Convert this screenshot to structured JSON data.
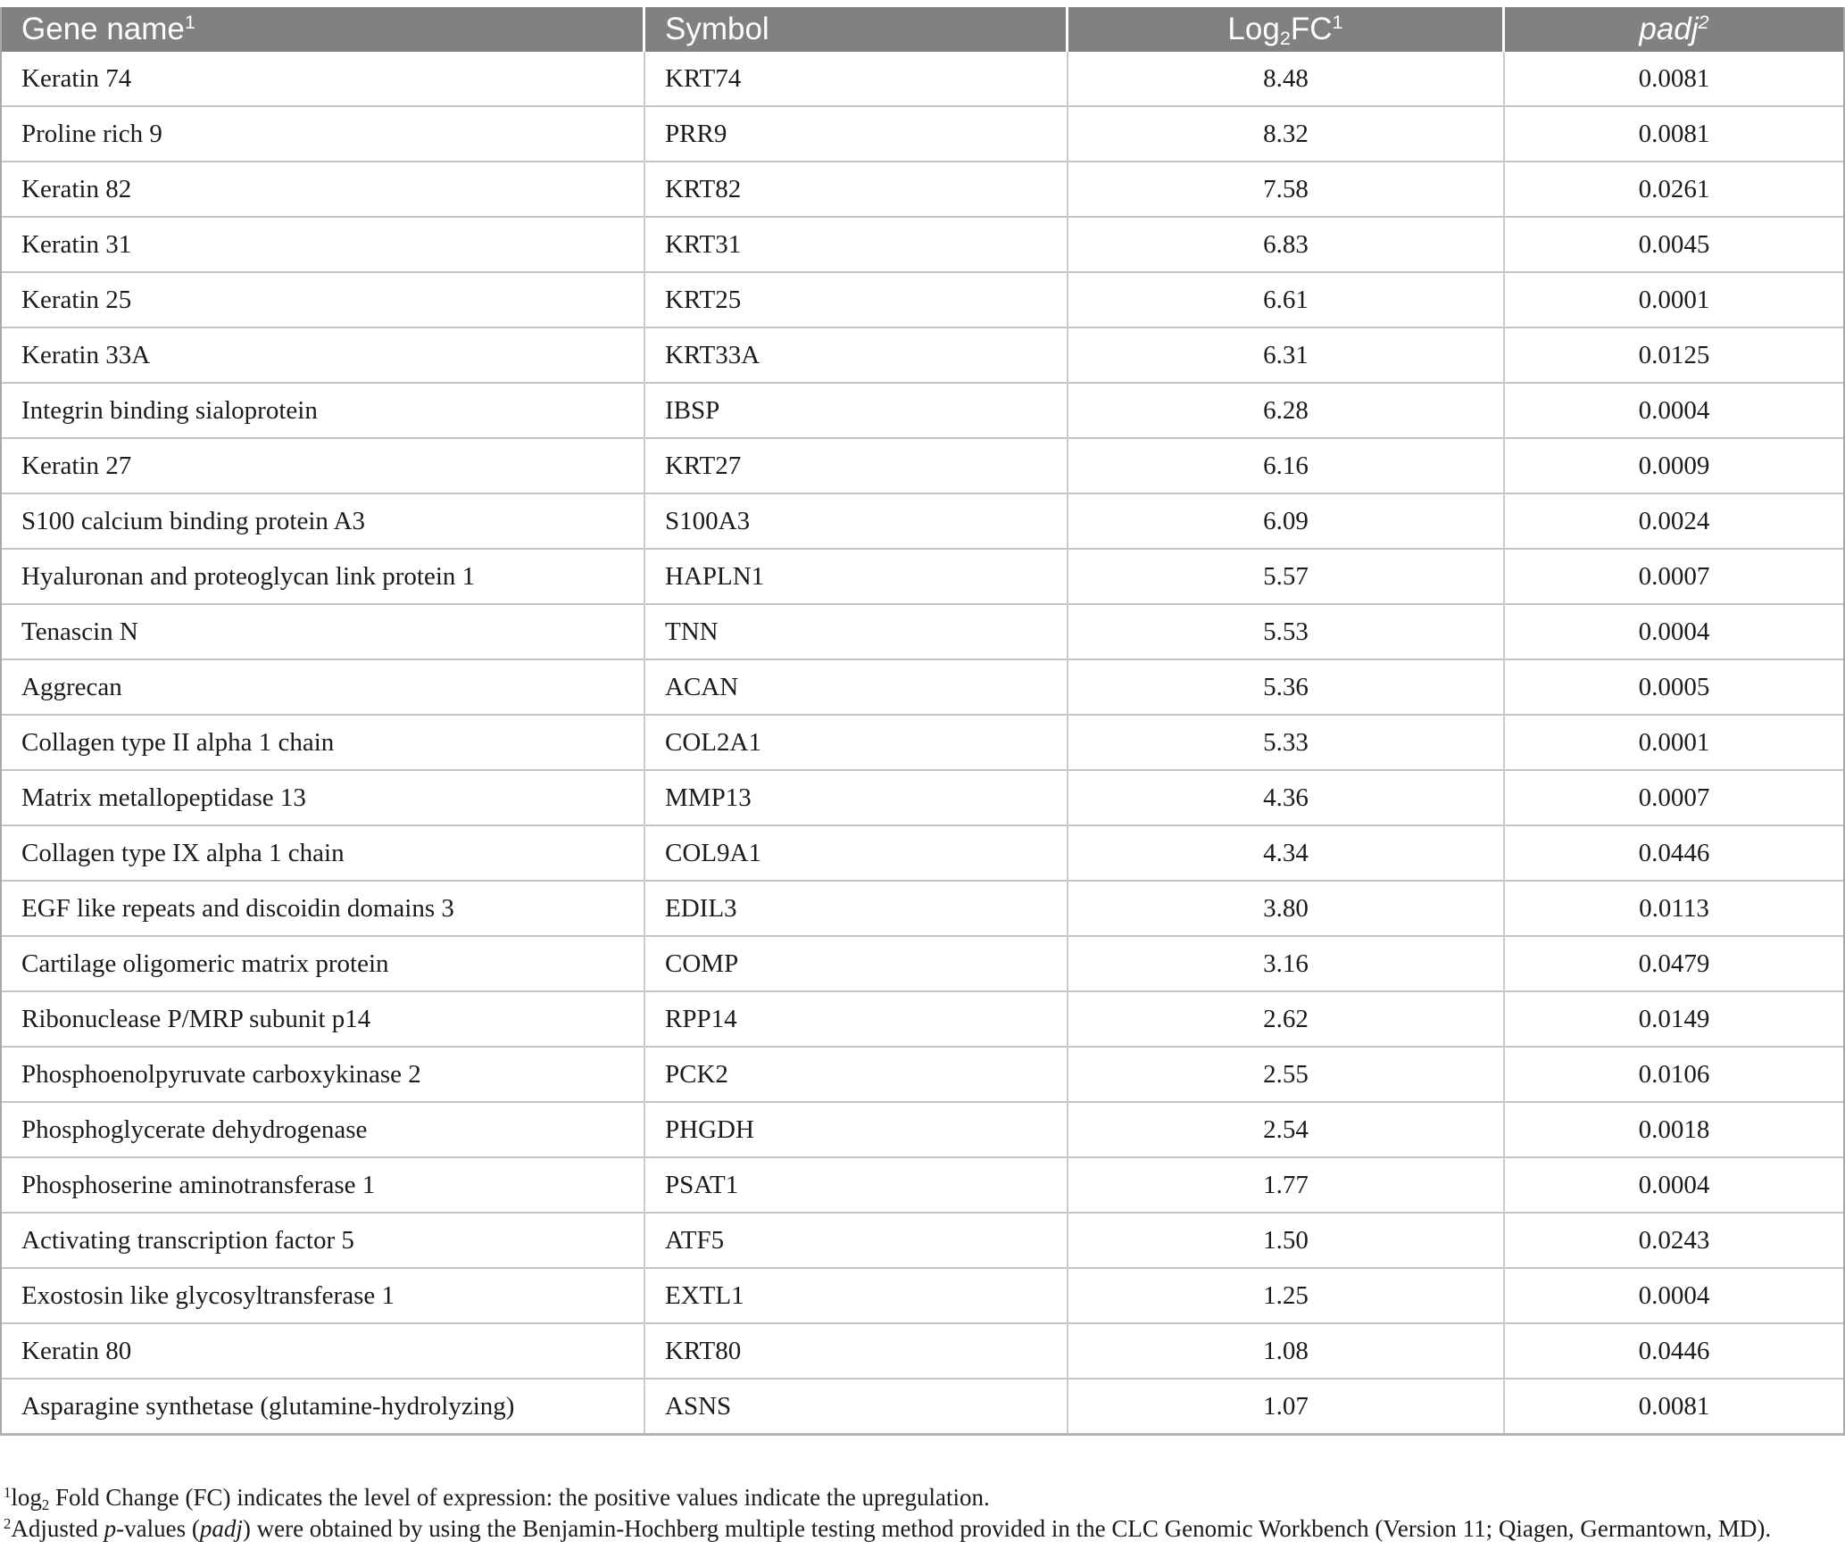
{
  "page": {
    "colors": {
      "header_bg": "#818181",
      "header_text": "#ffffff",
      "body_text": "#1b1b1b",
      "grid_inner": "#c9c9c9",
      "grid_outer": "#a8a8a8"
    }
  },
  "table": {
    "headers": [
      {
        "key": "gene",
        "segments": [
          {
            "t": "Gene name"
          },
          {
            "sup": "1"
          }
        ]
      },
      {
        "key": "symbol",
        "segments": [
          {
            "t": "Symbol"
          }
        ]
      },
      {
        "key": "log2fc",
        "segments": [
          {
            "t": "Log"
          },
          {
            "sub": "2"
          },
          {
            "t": "FC"
          },
          {
            "sup": "1"
          }
        ]
      },
      {
        "key": "padj",
        "segments": [
          {
            "t": "padj"
          },
          {
            "sup": "2"
          }
        ]
      }
    ],
    "rows": [
      {
        "gene": "Keratin 74",
        "symbol": "KRT74",
        "log2fc": "8.48",
        "padj": "0.0081"
      },
      {
        "gene": "Proline rich 9",
        "symbol": "PRR9",
        "log2fc": "8.32",
        "padj": "0.0081"
      },
      {
        "gene": "Keratin 82",
        "symbol": "KRT82",
        "log2fc": "7.58",
        "padj": "0.0261"
      },
      {
        "gene": "Keratin 31",
        "symbol": "KRT31",
        "log2fc": "6.83",
        "padj": "0.0045"
      },
      {
        "gene": "Keratin 25",
        "symbol": "KRT25",
        "log2fc": "6.61",
        "padj": "0.0001"
      },
      {
        "gene": "Keratin 33A",
        "symbol": "KRT33A",
        "log2fc": "6.31",
        "padj": "0.0125"
      },
      {
        "gene": "Integrin binding sialoprotein",
        "symbol": "IBSP",
        "log2fc": "6.28",
        "padj": "0.0004"
      },
      {
        "gene": "Keratin 27",
        "symbol": "KRT27",
        "log2fc": "6.16",
        "padj": "0.0009"
      },
      {
        "gene": "S100 calcium binding protein A3",
        "symbol": "S100A3",
        "log2fc": "6.09",
        "padj": "0.0024"
      },
      {
        "gene": "Hyaluronan and proteoglycan link protein 1",
        "symbol": "HAPLN1",
        "log2fc": "5.57",
        "padj": "0.0007"
      },
      {
        "gene": "Tenascin N",
        "symbol": "TNN",
        "log2fc": "5.53",
        "padj": "0.0004"
      },
      {
        "gene": "Aggrecan",
        "symbol": "ACAN",
        "log2fc": "5.36",
        "padj": "0.0005"
      },
      {
        "gene": "Collagen type II alpha 1 chain",
        "symbol": "COL2A1",
        "log2fc": "5.33",
        "padj": "0.0001"
      },
      {
        "gene": "Matrix metallopeptidase 13",
        "symbol": "MMP13",
        "log2fc": "4.36",
        "padj": "0.0007"
      },
      {
        "gene": "Collagen type IX alpha 1 chain",
        "symbol": "COL9A1",
        "log2fc": "4.34",
        "padj": "0.0446"
      },
      {
        "gene": "EGF like repeats and discoidin domains 3",
        "symbol": "EDIL3",
        "log2fc": "3.80",
        "padj": "0.0113"
      },
      {
        "gene": "Cartilage oligomeric matrix protein",
        "symbol": "COMP",
        "log2fc": "3.16",
        "padj": "0.0479"
      },
      {
        "gene": "Ribonuclease P/MRP subunit p14",
        "symbol": "RPP14",
        "log2fc": "2.62",
        "padj": "0.0149"
      },
      {
        "gene": "Phosphoenolpyruvate carboxykinase 2",
        "symbol": "PCK2",
        "log2fc": "2.55",
        "padj": "0.0106"
      },
      {
        "gene": "Phosphoglycerate dehydrogenase",
        "symbol": "PHGDH",
        "log2fc": "2.54",
        "padj": "0.0018"
      },
      {
        "gene": "Phosphoserine aminotransferase 1",
        "symbol": "PSAT1",
        "log2fc": "1.77",
        "padj": "0.0004"
      },
      {
        "gene": "Activating transcription factor 5",
        "symbol": "ATF5",
        "log2fc": "1.50",
        "padj": "0.0243"
      },
      {
        "gene": "Exostosin like glycosyltransferase 1",
        "symbol": "EXTL1",
        "log2fc": "1.25",
        "padj": "0.0004"
      },
      {
        "gene": "Keratin 80",
        "symbol": "KRT80",
        "log2fc": "1.08",
        "padj": "0.0446"
      },
      {
        "gene": "Asparagine synthetase (glutamine-hydrolyzing)",
        "symbol": "ASNS",
        "log2fc": "1.07",
        "padj": "0.0081"
      }
    ]
  },
  "footnotes": [
    {
      "segments": [
        {
          "sup": "1"
        },
        {
          "t": "log"
        },
        {
          "sub": "2"
        },
        {
          "t": " Fold Change (FC) indicates the level of expression: the positive values indicate the upregulation."
        }
      ]
    },
    {
      "segments": [
        {
          "sup": "2"
        },
        {
          "t": "Adjusted "
        },
        {
          "i": "p"
        },
        {
          "t": "-values ("
        },
        {
          "i": "padj"
        },
        {
          "t": ") were obtained by using the Benjamin-Hochberg multiple testing method provided in the CLC Genomic Workbench (Version 11; Qiagen, Germantown, MD)."
        }
      ]
    }
  ]
}
